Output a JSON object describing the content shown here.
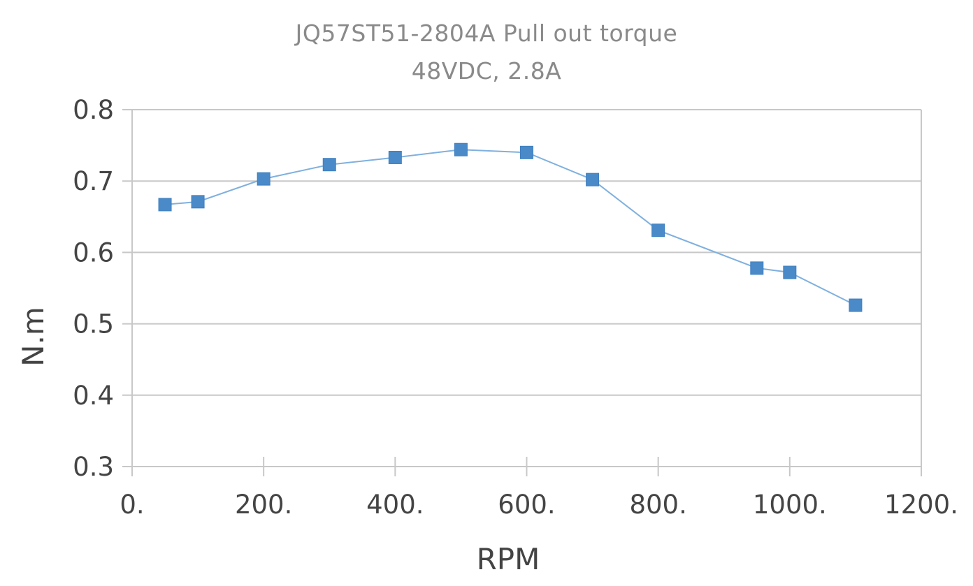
{
  "chart_data": {
    "type": "line",
    "title": "JQ57ST51-2804A Pull out torque",
    "subtitle": "48VDC, 2.8A",
    "xlabel": "RPM",
    "ylabel": "N.m",
    "xlim": [
      0,
      1200
    ],
    "ylim": [
      0.3,
      0.8
    ],
    "x_ticks": [
      "0.",
      "200.",
      "400.",
      "600.",
      "800.",
      "1000.",
      "1200."
    ],
    "y_ticks": [
      "0.3",
      "0.4",
      "0.5",
      "0.6",
      "0.7",
      "0.8"
    ],
    "grid": true,
    "legend": "none",
    "series": [
      {
        "x": [
          50,
          100,
          200,
          300,
          400,
          500,
          600,
          700,
          800,
          950,
          1000,
          1100
        ],
        "y": [
          0.667,
          0.671,
          0.703,
          0.723,
          0.733,
          0.744,
          0.74,
          0.702,
          0.631,
          0.578,
          0.572,
          0.526
        ],
        "marker": "square",
        "color": "#4a8ac8"
      }
    ],
    "colors": {
      "line": "#7fb0df",
      "marker": "#4a8ac8",
      "grid": "#c8c8c8",
      "axis": "#999999",
      "title": "#8a8a8a",
      "text": "#444444"
    }
  }
}
